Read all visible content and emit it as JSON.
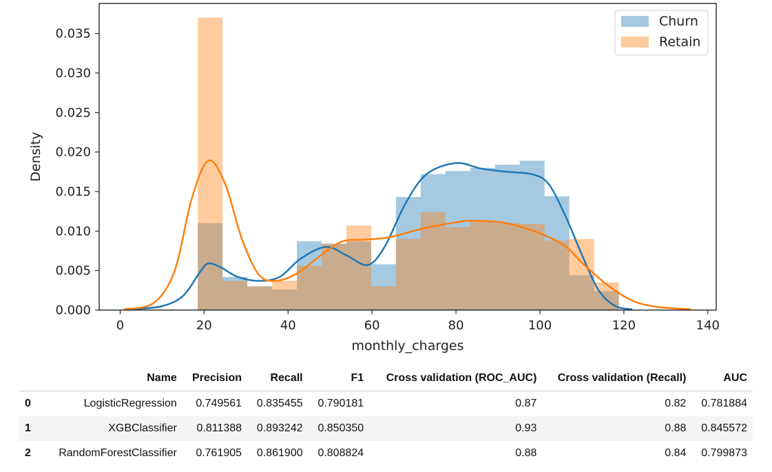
{
  "chart_data": {
    "type": "histogram_kde",
    "xlabel": "monthly_charges",
    "ylabel": "Density",
    "xlim": [
      -5,
      142
    ],
    "ylim": [
      0,
      0.0388
    ],
    "xticks": [
      0,
      20,
      40,
      60,
      80,
      100,
      120,
      140
    ],
    "yticks": [
      0.0,
      0.005,
      0.01,
      0.015,
      0.02,
      0.025,
      0.03,
      0.035
    ],
    "ytick_labels": [
      "0.000",
      "0.005",
      "0.010",
      "0.015",
      "0.020",
      "0.025",
      "0.030",
      "0.035"
    ],
    "legend_position": "top-right",
    "series": [
      {
        "name": "Churn",
        "color": "#1f77b4",
        "bins": [
          {
            "x0": 18.5,
            "x1": 24.4,
            "y": 0.011
          },
          {
            "x0": 24.4,
            "x1": 30.3,
            "y": 0.0042
          },
          {
            "x0": 30.3,
            "x1": 36.2,
            "y": 0.003
          },
          {
            "x0": 36.2,
            "x1": 42.1,
            "y": 0.0026
          },
          {
            "x0": 42.1,
            "x1": 48.0,
            "y": 0.0087
          },
          {
            "x0": 48.0,
            "x1": 53.9,
            "y": 0.0084
          },
          {
            "x0": 53.9,
            "x1": 59.8,
            "y": 0.0087
          },
          {
            "x0": 59.8,
            "x1": 65.7,
            "y": 0.0058
          },
          {
            "x0": 65.7,
            "x1": 71.6,
            "y": 0.0143
          },
          {
            "x0": 71.6,
            "x1": 77.5,
            "y": 0.0172
          },
          {
            "x0": 77.5,
            "x1": 83.4,
            "y": 0.0176
          },
          {
            "x0": 83.4,
            "x1": 89.3,
            "y": 0.018
          },
          {
            "x0": 89.3,
            "x1": 95.2,
            "y": 0.0184
          },
          {
            "x0": 95.2,
            "x1": 101.1,
            "y": 0.0189
          },
          {
            "x0": 101.1,
            "x1": 107.0,
            "y": 0.0144
          },
          {
            "x0": 107.0,
            "x1": 112.9,
            "y": 0.0044
          },
          {
            "x0": 112.9,
            "x1": 118.8,
            "y": 0.0024
          }
        ],
        "kde": [
          [
            3,
            0.0001
          ],
          [
            10,
            0.0005
          ],
          [
            15,
            0.0018
          ],
          [
            19,
            0.0048
          ],
          [
            21,
            0.0059
          ],
          [
            24,
            0.0054
          ],
          [
            28,
            0.0042
          ],
          [
            33,
            0.0037
          ],
          [
            38,
            0.0042
          ],
          [
            43,
            0.0065
          ],
          [
            49,
            0.008
          ],
          [
            54,
            0.0069
          ],
          [
            59,
            0.0057
          ],
          [
            63,
            0.008
          ],
          [
            68,
            0.0135
          ],
          [
            73,
            0.0172
          ],
          [
            80,
            0.0186
          ],
          [
            86,
            0.0179
          ],
          [
            92,
            0.0175
          ],
          [
            98,
            0.0172
          ],
          [
            102,
            0.016
          ],
          [
            106,
            0.012
          ],
          [
            110,
            0.007
          ],
          [
            114,
            0.0025
          ],
          [
            118,
            0.0005
          ],
          [
            122,
            0.0001
          ]
        ]
      },
      {
        "name": "Retain",
        "color": "#ff7f0e",
        "bins": [
          {
            "x0": 18.5,
            "x1": 24.4,
            "y": 0.037
          },
          {
            "x0": 24.4,
            "x1": 30.3,
            "y": 0.0037
          },
          {
            "x0": 30.3,
            "x1": 36.2,
            "y": 0.003
          },
          {
            "x0": 36.2,
            "x1": 42.1,
            "y": 0.0037
          },
          {
            "x0": 42.1,
            "x1": 48.0,
            "y": 0.0056
          },
          {
            "x0": 48.0,
            "x1": 53.9,
            "y": 0.0084
          },
          {
            "x0": 53.9,
            "x1": 59.8,
            "y": 0.0107
          },
          {
            "x0": 59.8,
            "x1": 65.7,
            "y": 0.003
          },
          {
            "x0": 65.7,
            "x1": 71.6,
            "y": 0.009
          },
          {
            "x0": 71.6,
            "x1": 77.5,
            "y": 0.0124
          },
          {
            "x0": 77.5,
            "x1": 83.4,
            "y": 0.0105
          },
          {
            "x0": 83.4,
            "x1": 89.3,
            "y": 0.0112
          },
          {
            "x0": 89.3,
            "x1": 95.2,
            "y": 0.011
          },
          {
            "x0": 95.2,
            "x1": 101.1,
            "y": 0.0109
          },
          {
            "x0": 101.1,
            "x1": 107.0,
            "y": 0.0088
          },
          {
            "x0": 107.0,
            "x1": 112.9,
            "y": 0.009
          },
          {
            "x0": 112.9,
            "x1": 118.8,
            "y": 0.0035
          }
        ],
        "kde": [
          [
            1,
            0.0001
          ],
          [
            8,
            0.0009
          ],
          [
            13,
            0.005
          ],
          [
            17,
            0.014
          ],
          [
            21,
            0.0189
          ],
          [
            25,
            0.016
          ],
          [
            29,
            0.009
          ],
          [
            33,
            0.0045
          ],
          [
            37,
            0.0037
          ],
          [
            42,
            0.0046
          ],
          [
            48,
            0.007
          ],
          [
            53,
            0.0087
          ],
          [
            58,
            0.0089
          ],
          [
            64,
            0.0092
          ],
          [
            72,
            0.0103
          ],
          [
            80,
            0.0111
          ],
          [
            84,
            0.0113
          ],
          [
            92,
            0.011
          ],
          [
            100,
            0.0097
          ],
          [
            106,
            0.0081
          ],
          [
            110,
            0.006
          ],
          [
            116,
            0.0032
          ],
          [
            122,
            0.0012
          ],
          [
            128,
            0.0004
          ],
          [
            136,
            0.0001
          ]
        ]
      }
    ]
  },
  "table": {
    "columns": [
      "",
      "Name",
      "Precision",
      "Recall",
      "F1",
      "Cross validation (ROC_AUC)",
      "Cross validation (Recall)",
      "AUC"
    ],
    "rows": [
      [
        "0",
        "LogisticRegression",
        "0.749561",
        "0.835455",
        "0.790181",
        "0.87",
        "0.82",
        "0.781884"
      ],
      [
        "1",
        "XGBClassifier",
        "0.811388",
        "0.893242",
        "0.850350",
        "0.93",
        "0.88",
        "0.845572"
      ],
      [
        "2",
        "RandomForestClassifier",
        "0.761905",
        "0.861900",
        "0.808824",
        "0.88",
        "0.84",
        "0.799873"
      ]
    ]
  }
}
